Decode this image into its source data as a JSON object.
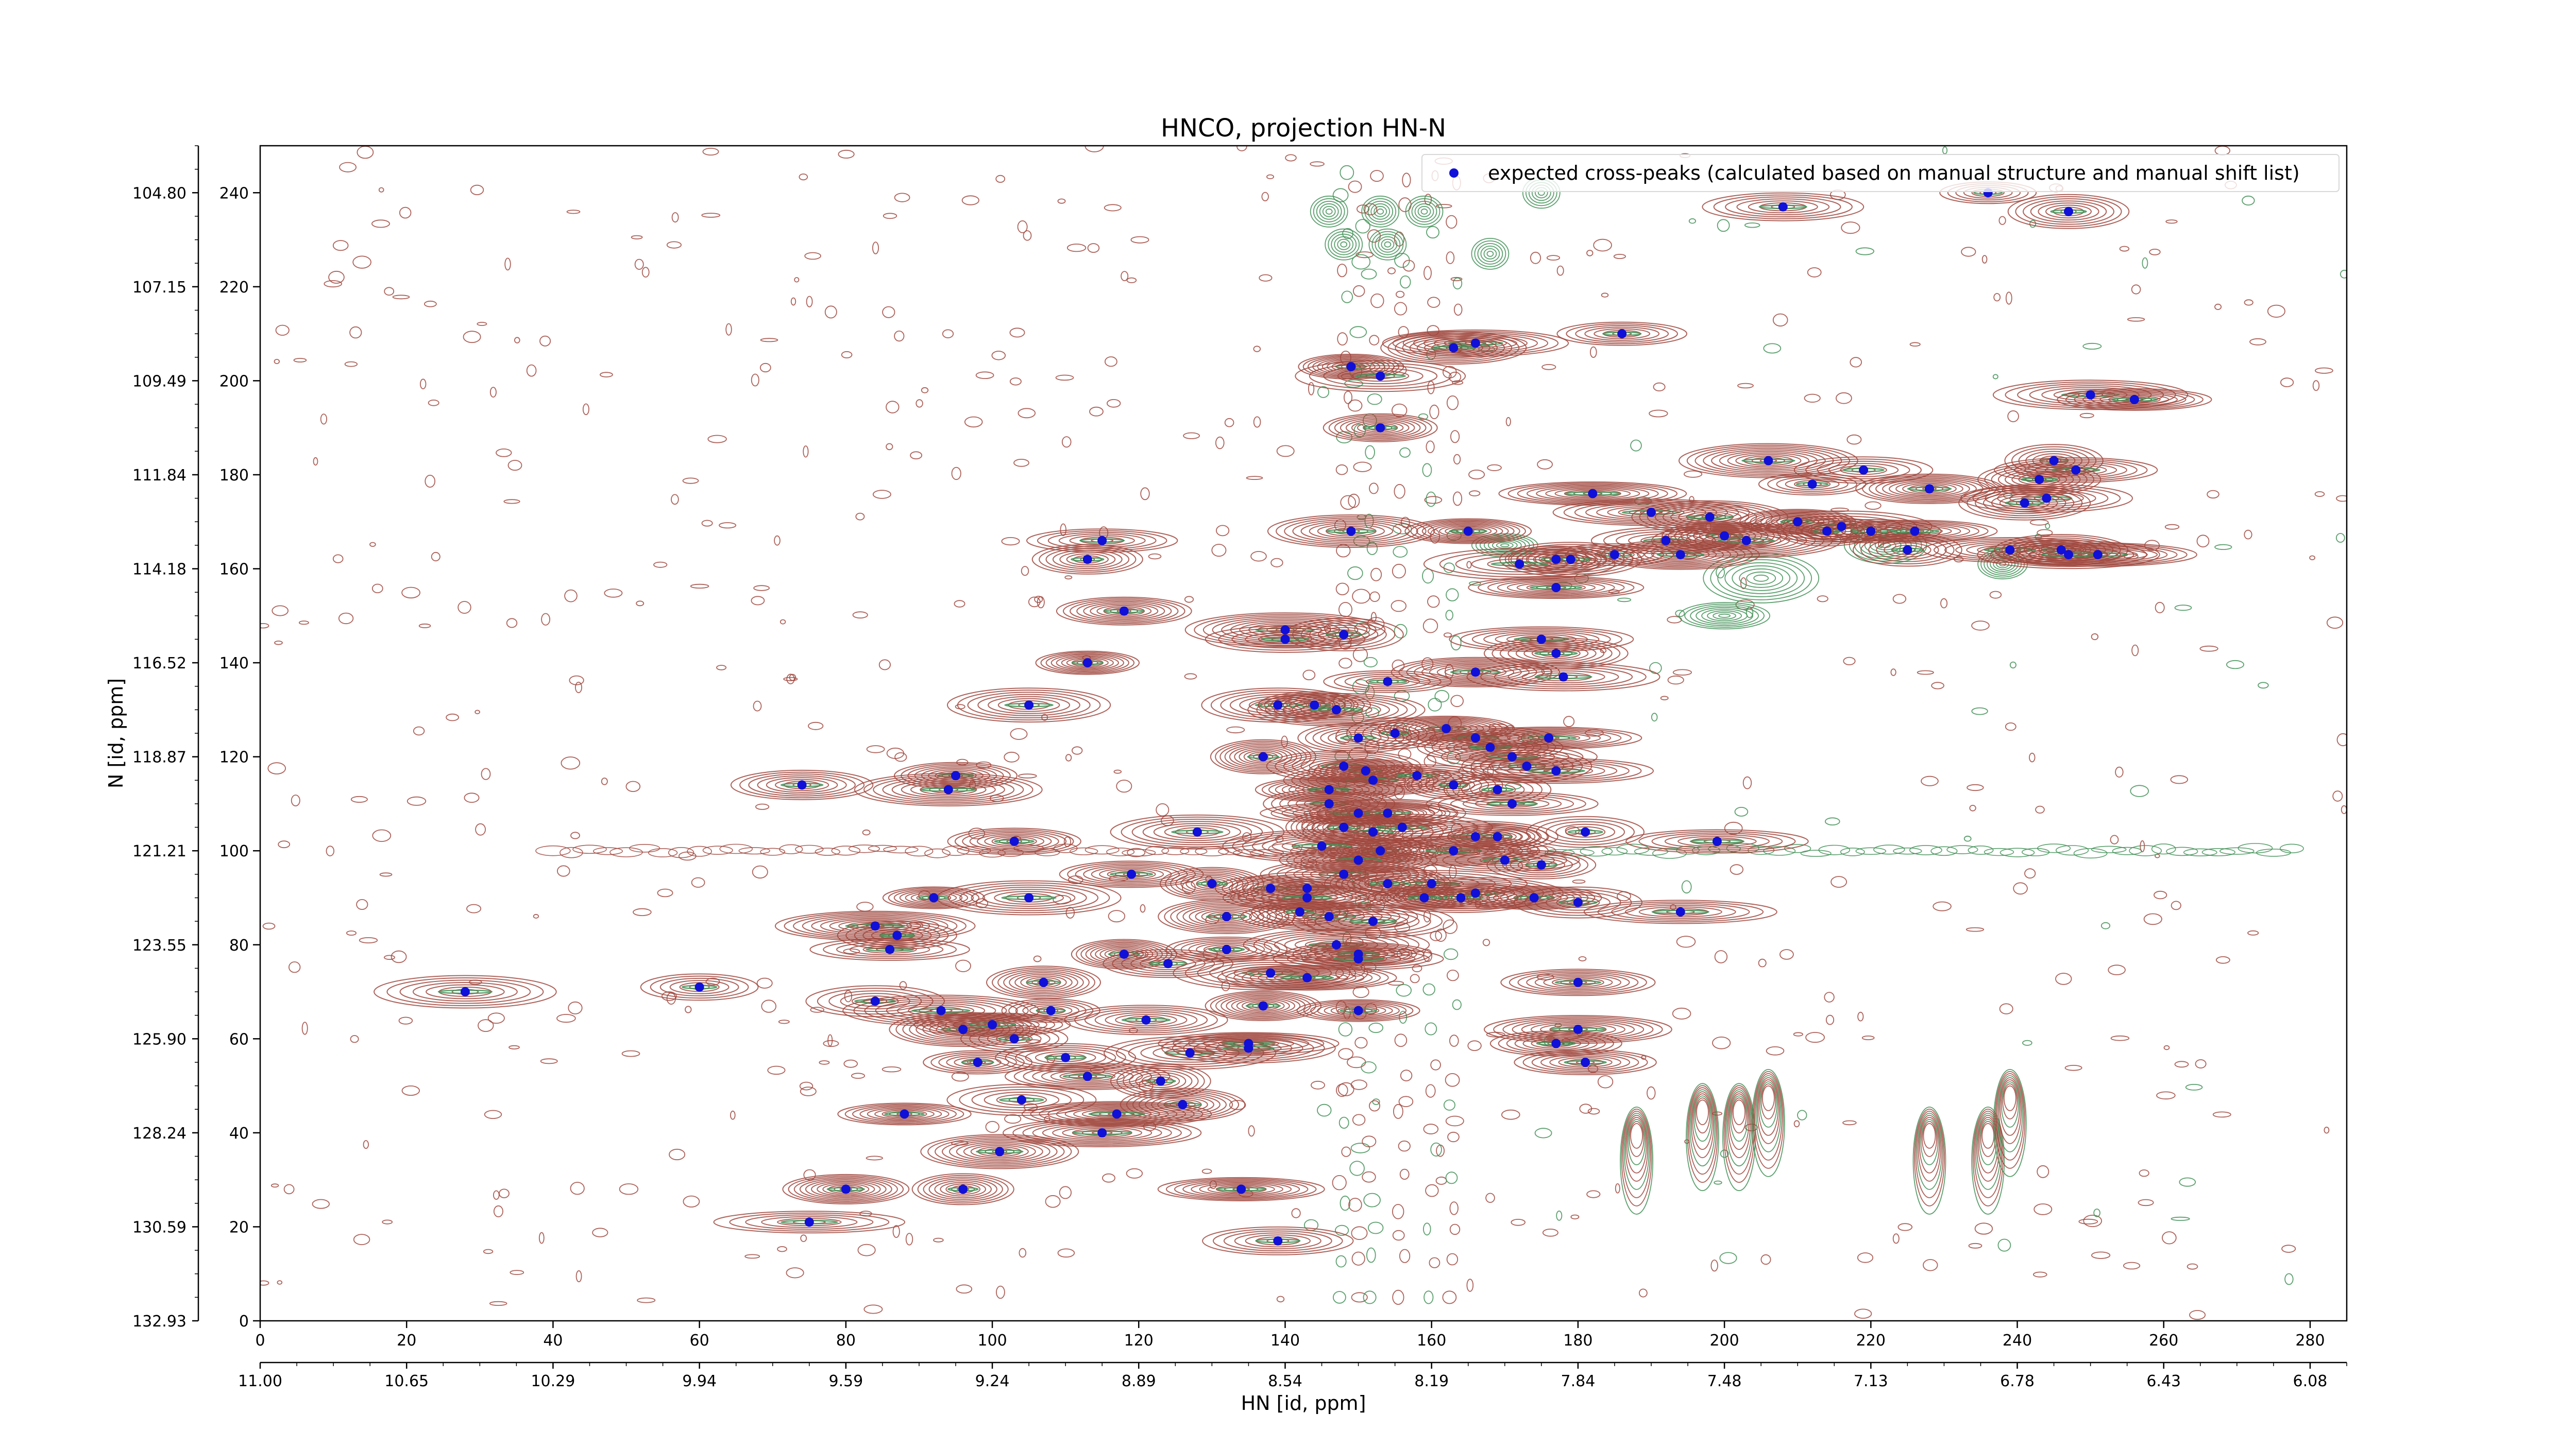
{
  "chart_data": {
    "type": "scatter",
    "title": "HNCO, projection HN-N",
    "xlabel": "HN [id, ppm]",
    "ylabel": "N [id, ppm]",
    "x_index_ticks": [
      0,
      20,
      40,
      60,
      80,
      100,
      120,
      140,
      160,
      180,
      200,
      220,
      240,
      260,
      280
    ],
    "x_ppm_ticks": [
      "11.00",
      "10.65",
      "10.29",
      "9.94",
      "9.59",
      "9.24",
      "8.89",
      "8.54",
      "8.19",
      "7.84",
      "7.48",
      "7.13",
      "6.78",
      "6.43",
      "6.08"
    ],
    "y_index_ticks": [
      0,
      20,
      40,
      60,
      80,
      100,
      120,
      140,
      160,
      180,
      200,
      220,
      240
    ],
    "y_ppm_ticks": [
      "132.93",
      "130.59",
      "128.24",
      "125.90",
      "123.55",
      "121.21",
      "118.87",
      "116.52",
      "114.18",
      "111.84",
      "109.49",
      "107.15",
      "104.80"
    ],
    "xlim": [
      0,
      285
    ],
    "ylim": [
      0,
      250
    ],
    "legend": {
      "position": "top-right",
      "label": "expected cross-peaks (calculated based on manual structure and manual shift list)"
    },
    "colors": {
      "positive_contours": "#a0483e",
      "negative_contours": "#3f8f55",
      "peaks": "#1010d8"
    },
    "series": [
      {
        "name": "expected cross-peaks (calculated based on manual structure and manual shift list)",
        "points": [
          [
            236,
            240
          ],
          [
            208,
            237
          ],
          [
            247,
            236
          ],
          [
            166,
            208
          ],
          [
            163,
            207
          ],
          [
            149,
            203
          ],
          [
            153,
            201
          ],
          [
            186,
            210
          ],
          [
            250,
            197
          ],
          [
            256,
            196
          ],
          [
            153,
            190
          ],
          [
            206,
            183
          ],
          [
            219,
            181
          ],
          [
            245,
            183
          ],
          [
            248,
            181
          ],
          [
            243,
            179
          ],
          [
            182,
            176
          ],
          [
            228,
            177
          ],
          [
            212,
            178
          ],
          [
            244,
            175
          ],
          [
            241,
            174
          ],
          [
            190,
            172
          ],
          [
            198,
            171
          ],
          [
            210,
            170
          ],
          [
            216,
            169
          ],
          [
            220,
            168
          ],
          [
            214,
            168
          ],
          [
            226,
            168
          ],
          [
            200,
            167
          ],
          [
            203,
            166
          ],
          [
            192,
            166
          ],
          [
            225,
            164
          ],
          [
            239,
            164
          ],
          [
            246,
            164
          ],
          [
            251,
            163
          ],
          [
            194,
            163
          ],
          [
            185,
            163
          ],
          [
            247,
            163
          ],
          [
            179,
            162
          ],
          [
            177,
            162
          ],
          [
            149,
            168
          ],
          [
            165,
            168
          ],
          [
            172,
            161
          ],
          [
            115,
            166
          ],
          [
            113,
            162
          ],
          [
            177,
            156
          ],
          [
            118,
            151
          ],
          [
            140,
            147
          ],
          [
            140,
            145
          ],
          [
            148,
            146
          ],
          [
            175,
            145
          ],
          [
            177,
            142
          ],
          [
            113,
            140
          ],
          [
            166,
            138
          ],
          [
            154,
            136
          ],
          [
            178,
            137
          ],
          [
            139,
            131
          ],
          [
            144,
            131
          ],
          [
            147,
            130
          ],
          [
            162,
            126
          ],
          [
            155,
            125
          ],
          [
            166,
            124
          ],
          [
            150,
            124
          ],
          [
            176,
            124
          ],
          [
            168,
            122
          ],
          [
            137,
            120
          ],
          [
            171,
            120
          ],
          [
            173,
            118
          ],
          [
            177,
            117
          ],
          [
            148,
            118
          ],
          [
            151,
            117
          ],
          [
            152,
            115
          ],
          [
            158,
            116
          ],
          [
            163,
            114
          ],
          [
            105,
            131
          ],
          [
            95,
            116
          ],
          [
            94,
            113
          ],
          [
            146,
            113
          ],
          [
            169,
            113
          ],
          [
            171,
            110
          ],
          [
            146,
            110
          ],
          [
            150,
            108
          ],
          [
            154,
            108
          ],
          [
            148,
            105
          ],
          [
            156,
            105
          ],
          [
            152,
            104
          ],
          [
            169,
            103
          ],
          [
            166,
            103
          ],
          [
            153,
            100
          ],
          [
            163,
            100
          ],
          [
            170,
            98
          ],
          [
            175,
            97
          ],
          [
            128,
            104
          ],
          [
            103,
            102
          ],
          [
            145,
            101
          ],
          [
            150,
            98
          ],
          [
            181,
            104
          ],
          [
            199,
            102
          ],
          [
            74,
            114
          ],
          [
            92,
            90
          ],
          [
            148,
            95
          ],
          [
            154,
            93
          ],
          [
            160,
            93
          ],
          [
            143,
            92
          ],
          [
            138,
            92
          ],
          [
            166,
            91
          ],
          [
            174,
            90
          ],
          [
            84,
            84
          ],
          [
            86,
            79
          ],
          [
            87,
            82
          ],
          [
            105,
            90
          ],
          [
            119,
            95
          ],
          [
            130,
            93
          ],
          [
            143,
            90
          ],
          [
            180,
            89
          ],
          [
            194,
            87
          ],
          [
            164,
            90
          ],
          [
            159,
            90
          ],
          [
            146,
            86
          ],
          [
            132,
            86
          ],
          [
            142,
            87
          ],
          [
            152,
            85
          ],
          [
            132,
            79
          ],
          [
            147,
            80
          ],
          [
            150,
            78
          ],
          [
            118,
            78
          ],
          [
            150,
            77
          ],
          [
            124,
            76
          ],
          [
            138,
            74
          ],
          [
            180,
            72
          ],
          [
            107,
            72
          ],
          [
            143,
            73
          ],
          [
            84,
            68
          ],
          [
            108,
            66
          ],
          [
            121,
            64
          ],
          [
            150,
            66
          ],
          [
            180,
            62
          ],
          [
            96,
            62
          ],
          [
            103,
            60
          ],
          [
            127,
            57
          ],
          [
            177,
            59
          ],
          [
            93,
            66
          ],
          [
            100,
            63
          ],
          [
            137,
            67
          ],
          [
            135,
            59
          ],
          [
            110,
            56
          ],
          [
            123,
            51
          ],
          [
            113,
            52
          ],
          [
            126,
            46
          ],
          [
            117,
            44
          ],
          [
            104,
            47
          ],
          [
            98,
            55
          ],
          [
            135,
            58
          ],
          [
            88,
            44
          ],
          [
            115,
            40
          ],
          [
            101,
            36
          ],
          [
            60,
            71
          ],
          [
            28,
            70
          ],
          [
            181,
            55
          ],
          [
            96,
            28
          ],
          [
            134,
            28
          ],
          [
            80,
            28
          ],
          [
            75,
            21
          ],
          [
            139,
            17
          ]
        ]
      }
    ]
  }
}
